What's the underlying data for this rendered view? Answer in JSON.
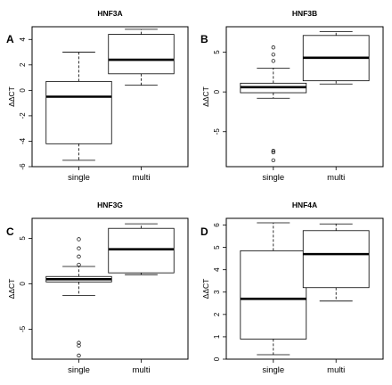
{
  "chart_data": [
    {
      "type": "box",
      "letter": "A",
      "title": "HNF3A",
      "ylabel": "ΔΔCT",
      "ylim": [
        -6,
        5
      ],
      "yticks": [
        -6,
        -4,
        -2,
        0,
        2,
        4
      ],
      "categories": [
        "single",
        "multi"
      ],
      "boxes": [
        {
          "min": -5.5,
          "q1": -4.2,
          "median": -0.5,
          "q3": 0.7,
          "max": 3.0,
          "outliers": []
        },
        {
          "min": 0.4,
          "q1": 1.3,
          "median": 2.4,
          "q3": 4.4,
          "max": 4.8,
          "outliers": []
        }
      ]
    },
    {
      "type": "box",
      "letter": "B",
      "title": "HNF3B",
      "ylabel": "ΔΔCT",
      "ylim": [
        -9.4,
        8.2
      ],
      "yticks": [
        -5,
        0,
        5
      ],
      "categories": [
        "single",
        "multi"
      ],
      "boxes": [
        {
          "min": -0.8,
          "q1": -0.1,
          "median": 0.6,
          "q3": 1.1,
          "max": 3.0,
          "outliers": [
            3.9,
            4.7,
            5.6,
            -7.4,
            -7.6,
            -8.6
          ]
        },
        {
          "min": 1.0,
          "q1": 1.4,
          "median": 4.3,
          "q3": 7.1,
          "max": 7.6,
          "outliers": []
        }
      ]
    },
    {
      "type": "box",
      "letter": "C",
      "title": "HNF3G",
      "ylabel": "ΔΔCT",
      "ylim": [
        -8.3,
        7.2
      ],
      "yticks": [
        -5,
        0,
        5
      ],
      "categories": [
        "single",
        "multi"
      ],
      "boxes": [
        {
          "min": -1.3,
          "q1": 0.2,
          "median": 0.5,
          "q3": 0.8,
          "max": 1.9,
          "outliers": [
            2.1,
            3.0,
            3.9,
            4.9,
            -6.5,
            -6.8,
            -7.9
          ]
        },
        {
          "min": 1.0,
          "q1": 1.2,
          "median": 3.8,
          "q3": 6.1,
          "max": 6.6,
          "outliers": []
        }
      ]
    },
    {
      "type": "box",
      "letter": "D",
      "title": "HNF4A",
      "ylabel": "ΔΔCT",
      "ylim": [
        0,
        6.3
      ],
      "yticks": [
        0,
        1,
        2,
        3,
        4,
        5,
        6
      ],
      "categories": [
        "single",
        "multi"
      ],
      "boxes": [
        {
          "min": 0.2,
          "q1": 0.9,
          "median": 2.7,
          "q3": 4.85,
          "max": 6.1,
          "outliers": []
        },
        {
          "min": 2.6,
          "q1": 3.2,
          "median": 4.7,
          "q3": 5.75,
          "max": 6.05,
          "outliers": []
        }
      ]
    }
  ]
}
